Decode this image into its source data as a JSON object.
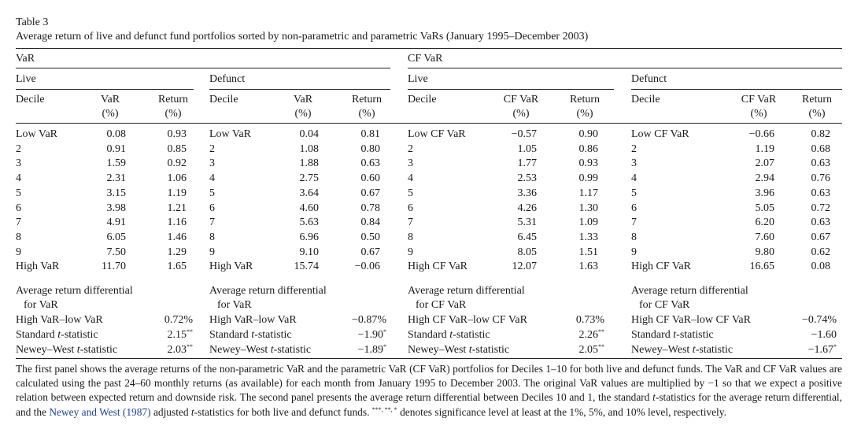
{
  "caption": {
    "number": "Table 3",
    "title": "Average return of live and defunct fund portfolios sorted by non-parametric and parametric VaRs (January 1995–December 2003)"
  },
  "group_labels": {
    "var": "VaR",
    "cfvar": "CF VaR"
  },
  "panels": [
    {
      "status": "Live",
      "decile_header": "Decile",
      "metric_header": [
        "VaR",
        "(%)"
      ],
      "return_header": [
        "Return",
        "(%)"
      ],
      "rows": [
        [
          "Low VaR",
          "0.08",
          "0.93"
        ],
        [
          "2",
          "0.91",
          "0.85"
        ],
        [
          "3",
          "1.59",
          "0.92"
        ],
        [
          "4",
          "2.31",
          "1.06"
        ],
        [
          "5",
          "3.15",
          "1.19"
        ],
        [
          "6",
          "3.98",
          "1.21"
        ],
        [
          "7",
          "4.91",
          "1.16"
        ],
        [
          "8",
          "6.05",
          "1.46"
        ],
        [
          "9",
          "7.50",
          "1.29"
        ],
        [
          "High VaR",
          "11.70",
          "1.65"
        ]
      ],
      "diff_title": [
        "Average return differential",
        "for VaR"
      ],
      "diff_rows": [
        {
          "pre": "High VaR–low VaR",
          "it": "",
          "post": "",
          "value": "0.72%",
          "sup": ""
        },
        {
          "pre": "Standard ",
          "it": "t",
          "post": "-statistic",
          "value": "2.15",
          "sup": "**"
        },
        {
          "pre": "Newey–West ",
          "it": "t",
          "post": "-statistic",
          "value": "2.03",
          "sup": "**"
        }
      ]
    },
    {
      "status": "Defunct",
      "decile_header": "Decile",
      "metric_header": [
        "VaR",
        "(%)"
      ],
      "return_header": [
        "Return",
        "(%)"
      ],
      "rows": [
        [
          "Low VaR",
          "0.04",
          "0.81"
        ],
        [
          "2",
          "1.08",
          "0.80"
        ],
        [
          "3",
          "1.88",
          "0.63"
        ],
        [
          "4",
          "2.75",
          "0.60"
        ],
        [
          "5",
          "3.64",
          "0.67"
        ],
        [
          "6",
          "4.60",
          "0.78"
        ],
        [
          "7",
          "5.63",
          "0.84"
        ],
        [
          "8",
          "6.96",
          "0.50"
        ],
        [
          "9",
          "9.10",
          "0.67"
        ],
        [
          "High VaR",
          "15.74",
          "−0.06"
        ]
      ],
      "diff_title": [
        "Average return differential",
        "for VaR"
      ],
      "diff_rows": [
        {
          "pre": "High VaR–low VaR",
          "it": "",
          "post": "",
          "value": "−0.87%",
          "sup": ""
        },
        {
          "pre": "Standard ",
          "it": "t",
          "post": "-statistic",
          "value": "−1.90",
          "sup": "*"
        },
        {
          "pre": "Newey–West ",
          "it": "t",
          "post": "-statistic",
          "value": "−1.89",
          "sup": "*"
        }
      ]
    },
    {
      "status": "Live",
      "decile_header": "Decile",
      "metric_header": [
        "CF VaR",
        "(%)"
      ],
      "return_header": [
        "Return",
        "(%)"
      ],
      "rows": [
        [
          "Low CF VaR",
          "−0.57",
          "0.90"
        ],
        [
          "2",
          "1.05",
          "0.86"
        ],
        [
          "3",
          "1.77",
          "0.93"
        ],
        [
          "4",
          "2.53",
          "0.99"
        ],
        [
          "5",
          "3.36",
          "1.17"
        ],
        [
          "6",
          "4.26",
          "1.30"
        ],
        [
          "7",
          "5.31",
          "1.09"
        ],
        [
          "8",
          "6.45",
          "1.33"
        ],
        [
          "9",
          "8.05",
          "1.51"
        ],
        [
          "High CF VaR",
          "12.07",
          "1.63"
        ]
      ],
      "diff_title": [
        "Average return differential",
        "for CF VaR"
      ],
      "diff_rows": [
        {
          "pre": "High CF VaR–low CF VaR",
          "it": "",
          "post": "",
          "value": "0.73%",
          "sup": ""
        },
        {
          "pre": "Standard ",
          "it": "t",
          "post": "-statistic",
          "value": "2.26",
          "sup": "**"
        },
        {
          "pre": "Newey–West ",
          "it": "t",
          "post": "-statistic",
          "value": "2.05",
          "sup": "**"
        }
      ]
    },
    {
      "status": "Defunct",
      "decile_header": "Decile",
      "metric_header": [
        "CF VaR",
        "(%)"
      ],
      "return_header": [
        "Return",
        "(%)"
      ],
      "rows": [
        [
          "Low CF VaR",
          "−0.66",
          "0.82"
        ],
        [
          "2",
          "1.19",
          "0.68"
        ],
        [
          "3",
          "2.07",
          "0.63"
        ],
        [
          "4",
          "2.94",
          "0.76"
        ],
        [
          "5",
          "3.96",
          "0.63"
        ],
        [
          "6",
          "5.05",
          "0.72"
        ],
        [
          "7",
          "6.20",
          "0.63"
        ],
        [
          "8",
          "7.60",
          "0.67"
        ],
        [
          "9",
          "9.80",
          "0.62"
        ],
        [
          "High CF VaR",
          "16.65",
          "0.08"
        ]
      ],
      "diff_title": [
        "Average return differential",
        "for CF VaR"
      ],
      "diff_rows": [
        {
          "pre": "High CF VaR–low CF VaR",
          "it": "",
          "post": "",
          "value": "−0.74%",
          "sup": ""
        },
        {
          "pre": "Standard ",
          "it": "t",
          "post": "-statistic",
          "value": "−1.60",
          "sup": ""
        },
        {
          "pre": "Newey–West ",
          "it": "t",
          "post": "-statistic",
          "value": "−1.67",
          "sup": "*"
        }
      ]
    }
  ],
  "footnote": {
    "part1": "The first panel shows the average returns of the non-parametric VaR and the parametric VaR (CF VaR) portfolios for Deciles 1–10 for both live and defunct funds. The VaR and CF VaR values are calculated using the past 24–60 monthly returns (as available) for each month from January 1995 to December 2003. The original VaR values are multiplied by −1 so that we expect a positive relation between expected return and downside risk. The second panel presents the average return differential between Deciles 10 and 1, the standard ",
    "t1": "t",
    "part2": "-statistics for the average return differential, and the ",
    "link": "Newey and West (1987)",
    "part3": " adjusted ",
    "t2": "t",
    "part4": "-statistics for both live and defunct funds. ",
    "sig_marks": "***, **, *",
    "part5": " denotes significance level at least at the 1%, 5%, and 10% level, respectively."
  }
}
